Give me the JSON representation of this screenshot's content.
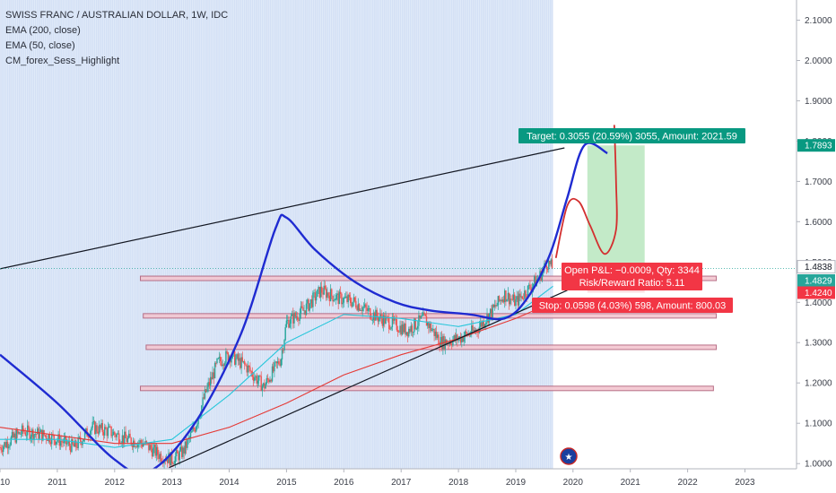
{
  "legend": {
    "title": "SWISS FRANC / AUSTRALIAN DOLLAR, 1W, IDC",
    "ema200": "EMA (200, close)",
    "ema50": "EMA (50, close)",
    "indicator": "CM_forex_Sess_Highlight"
  },
  "chart_data": {
    "type": "candlestick",
    "x_unit": "year",
    "xlim": [
      2010,
      2023.9
    ],
    "ylim": [
      0.987,
      2.15
    ],
    "x_ticks": [
      "2010",
      "2011",
      "2012",
      "2013",
      "2014",
      "2015",
      "2016",
      "2017",
      "2018",
      "2019",
      "2020",
      "2021",
      "2022",
      "2023"
    ],
    "y_ticks": [
      "2.1000",
      "2.0000",
      "1.9000",
      "1.8000",
      "1.7000",
      "1.6000",
      "1.5000",
      "1.4000",
      "1.3000",
      "1.2000",
      "1.1000",
      "1.0000"
    ],
    "session_highlight_end": 2019.65,
    "price_series": [
      [
        2010.0,
        1.04
      ],
      [
        2010.4,
        1.08
      ],
      [
        2010.8,
        1.07
      ],
      [
        2011.0,
        1.06
      ],
      [
        2011.3,
        1.04
      ],
      [
        2011.6,
        1.09
      ],
      [
        2011.9,
        1.08
      ],
      [
        2012.2,
        1.06
      ],
      [
        2012.5,
        1.05
      ],
      [
        2012.8,
        1.02
      ],
      [
        2013.0,
        1.01
      ],
      [
        2013.2,
        1.03
      ],
      [
        2013.4,
        1.09
      ],
      [
        2013.6,
        1.18
      ],
      [
        2013.8,
        1.25
      ],
      [
        2014.0,
        1.27
      ],
      [
        2014.3,
        1.24
      ],
      [
        2014.6,
        1.19
      ],
      [
        2014.9,
        1.26
      ],
      [
        2015.0,
        1.35
      ],
      [
        2015.3,
        1.38
      ],
      [
        2015.6,
        1.43
      ],
      [
        2015.9,
        1.41
      ],
      [
        2016.2,
        1.4
      ],
      [
        2016.5,
        1.37
      ],
      [
        2016.8,
        1.35
      ],
      [
        2017.1,
        1.33
      ],
      [
        2017.4,
        1.36
      ],
      [
        2017.7,
        1.3
      ],
      [
        2018.0,
        1.31
      ],
      [
        2018.3,
        1.33
      ],
      [
        2018.6,
        1.38
      ],
      [
        2018.8,
        1.42
      ],
      [
        2019.0,
        1.4
      ],
      [
        2019.2,
        1.43
      ],
      [
        2019.4,
        1.46
      ],
      [
        2019.55,
        1.5
      ],
      [
        2019.65,
        1.483
      ]
    ],
    "series": [
      {
        "name": "EMA (200, close)",
        "color": "#e53935",
        "points": [
          [
            2010.0,
            1.09
          ],
          [
            2011.0,
            1.07
          ],
          [
            2012.0,
            1.05
          ],
          [
            2013.0,
            1.05
          ],
          [
            2014.0,
            1.09
          ],
          [
            2015.0,
            1.15
          ],
          [
            2016.0,
            1.22
          ],
          [
            2017.0,
            1.27
          ],
          [
            2018.0,
            1.31
          ],
          [
            2019.0,
            1.36
          ],
          [
            2019.65,
            1.4
          ]
        ]
      },
      {
        "name": "EMA (50, close)",
        "color": "#26c6da",
        "points": [
          [
            2010.0,
            1.06
          ],
          [
            2011.0,
            1.06
          ],
          [
            2012.0,
            1.04
          ],
          [
            2013.0,
            1.06
          ],
          [
            2014.0,
            1.17
          ],
          [
            2015.0,
            1.3
          ],
          [
            2016.0,
            1.37
          ],
          [
            2017.0,
            1.36
          ],
          [
            2018.0,
            1.34
          ],
          [
            2019.0,
            1.37
          ],
          [
            2019.65,
            1.44
          ]
        ]
      }
    ],
    "annotations": {
      "blue_curve": [
        [
          2010.0,
          1.27
        ],
        [
          2011.0,
          1.15
        ],
        [
          2012.0,
          1.01
        ],
        [
          2012.6,
          0.98
        ],
        [
          2013.4,
          1.1
        ],
        [
          2014.2,
          1.32
        ],
        [
          2014.8,
          1.58
        ],
        [
          2015.0,
          1.61
        ],
        [
          2015.5,
          1.53
        ],
        [
          2016.2,
          1.45
        ],
        [
          2016.9,
          1.4
        ],
        [
          2017.5,
          1.38
        ],
        [
          2018.2,
          1.37
        ],
        [
          2018.8,
          1.36
        ],
        [
          2019.2,
          1.41
        ],
        [
          2019.6,
          1.52
        ],
        [
          2019.9,
          1.66
        ],
        [
          2020.2,
          1.79
        ],
        [
          2020.6,
          1.77
        ]
      ],
      "red_projection": [
        [
          2019.7,
          1.51
        ],
        [
          2019.9,
          1.64
        ],
        [
          2020.1,
          1.65
        ],
        [
          2020.3,
          1.59
        ],
        [
          2020.55,
          1.52
        ],
        [
          2020.75,
          1.58
        ],
        [
          2020.75,
          1.7
        ],
        [
          2020.72,
          1.84
        ]
      ],
      "upper_trend_line": [
        [
          2010.0,
          1.483
        ],
        [
          2019.85,
          1.783
        ]
      ],
      "lower_trend_line": [
        [
          2012.95,
          0.99
        ],
        [
          2019.9,
          1.43
        ]
      ],
      "horizontal_zones": [
        {
          "x0": 2012.45,
          "x1": 2022.5,
          "y_low": 1.455,
          "y_high": 1.465
        },
        {
          "x0": 2012.5,
          "x1": 2022.5,
          "y_low": 1.365,
          "y_high": 1.372
        },
        {
          "x0": 2012.55,
          "x1": 2022.5,
          "y_low": 1.286,
          "y_high": 1.294
        },
        {
          "x0": 2012.45,
          "x1": 2022.45,
          "y_low": 1.185,
          "y_high": 1.192
        }
      ],
      "target_zone": {
        "x0": 2020.25,
        "x1": 2021.25,
        "y_low": 1.483,
        "y_high": 1.7893
      },
      "stop_zone": {
        "x0": 2020.25,
        "x1": 2021.25,
        "y_low": 1.424,
        "y_high": 1.483
      }
    }
  },
  "position": {
    "target_label": "Target: 0.3055 (20.59%) 3055, Amount: 2021.59",
    "pnl_label": "Open P&L: −0.0009, Qty: 3344",
    "rr_label": "Risk/Reward Ratio: 5.11",
    "stop_label": "Stop: 0.0598 (4.03%) 598, Amount: 800.03",
    "target_color": "#089981",
    "stop_color": "#f23645"
  },
  "price_labels": {
    "target": "1.7893",
    "current": "1.4838",
    "ema": "1.4829",
    "stop": "1.4240"
  },
  "colors": {
    "session_highlight": "#aec6ec",
    "candle_up": "#26a69a",
    "candle_down": "#ef5350",
    "blue_curve": "#1f2bd1",
    "red_projection": "#d32f2f",
    "zone_fill": "#f3c6d0",
    "zone_border": "#b0607a",
    "target_fill": "#b9e6be"
  }
}
